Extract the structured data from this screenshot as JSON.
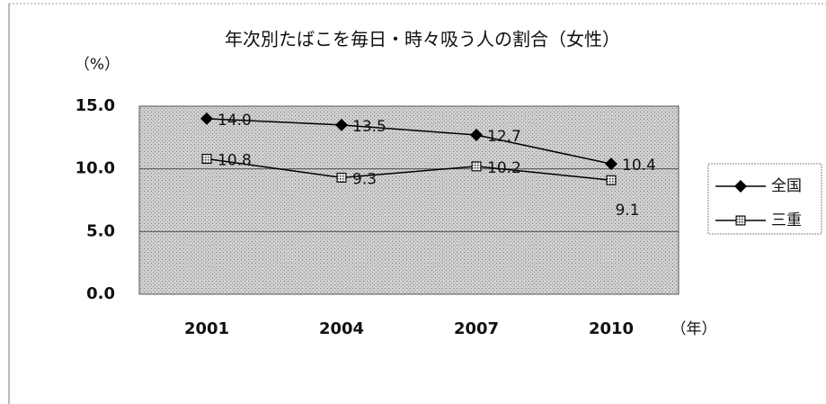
{
  "chart_data": {
    "type": "line",
    "title": "年次別たばこを毎日・時々吸う人の割合（女性）",
    "y_label": "（%）",
    "x_label": "（年）",
    "categories": [
      "2001",
      "2004",
      "2007",
      "2010"
    ],
    "series": [
      {
        "name": "全国",
        "color": "#000000",
        "marker": "diamond",
        "values": [
          14.0,
          13.5,
          12.7,
          10.4
        ],
        "value_labels": [
          "14.0",
          "13.5",
          "12.7",
          "10.4"
        ]
      },
      {
        "name": "三重",
        "color": "#000000",
        "marker": "square",
        "values": [
          10.8,
          9.3,
          10.2,
          9.1
        ],
        "value_labels": [
          "10.8",
          "9.3",
          "10.2",
          "9.1"
        ]
      }
    ],
    "ylim": [
      0,
      15
    ],
    "yticks": [
      {
        "value": 0,
        "label": "0.0"
      },
      {
        "value": 5,
        "label": "5.0"
      },
      {
        "value": 10,
        "label": "10.0"
      },
      {
        "value": 15,
        "label": "15.0"
      }
    ],
    "grid": true,
    "legend": "right"
  }
}
